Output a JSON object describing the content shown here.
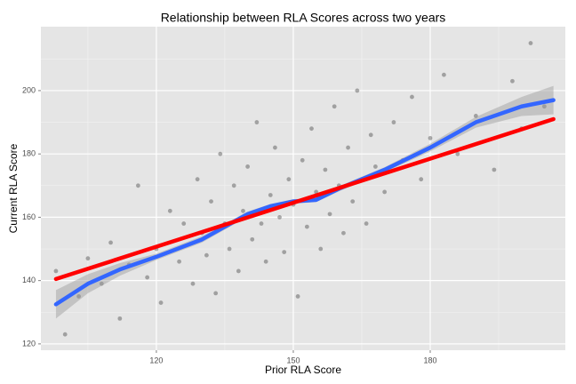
{
  "chart_data": {
    "type": "scatter",
    "title": "Relationship between RLA Scores across two years",
    "x_label": "Prior RLA Score",
    "y_label": "Current RLA Score",
    "xlim": [
      94.7,
      209.6
    ],
    "ylim": [
      118.0,
      220.2
    ],
    "xticks": [
      120,
      150,
      180
    ],
    "yticks": [
      120,
      140,
      160,
      180,
      200
    ],
    "xminor": [
      105,
      135,
      165,
      195
    ],
    "yminor": [
      130,
      150,
      170,
      190,
      210
    ],
    "grid": true,
    "points": {
      "color": "#000000",
      "x": [
        98,
        100,
        103,
        105,
        108,
        110,
        112,
        114,
        116,
        118,
        120,
        121,
        123,
        125,
        126,
        128,
        129,
        130,
        131,
        132,
        133,
        134,
        135,
        136,
        137,
        138,
        139,
        140,
        141,
        142,
        143,
        144,
        145,
        146,
        147,
        148,
        149,
        150,
        151,
        152,
        153,
        154,
        155,
        156,
        157,
        158,
        159,
        160,
        161,
        162,
        163,
        164,
        165,
        166,
        167,
        168,
        170,
        172,
        174,
        176,
        178,
        180,
        183,
        186,
        190,
        194,
        198,
        202,
        205,
        200
      ],
      "y": [
        143,
        123,
        135,
        147,
        139,
        152,
        128,
        145,
        170,
        141,
        150,
        133,
        162,
        146,
        158,
        139,
        172,
        155,
        148,
        165,
        136,
        180,
        158,
        150,
        170,
        143,
        162,
        176,
        153,
        190,
        158,
        146,
        167,
        182,
        160,
        149,
        172,
        164,
        135,
        178,
        157,
        188,
        168,
        150,
        175,
        161,
        195,
        170,
        155,
        182,
        165,
        200,
        172,
        158,
        186,
        176,
        168,
        190,
        178,
        198,
        172,
        185,
        205,
        180,
        192,
        175,
        203,
        215,
        195,
        188
      ]
    },
    "lines": [
      {
        "color": "#3366FF",
        "band_color": "#999999",
        "x": [
          98,
          105,
          112,
          120,
          130,
          140,
          145,
          150,
          155,
          160,
          170,
          180,
          190,
          200,
          207
        ],
        "y": [
          132.5,
          139,
          143.5,
          147.5,
          153,
          161,
          163.5,
          165,
          165.5,
          169,
          175,
          182,
          190,
          195,
          197
        ],
        "lower": [
          128,
          136,
          141.5,
          146.5,
          152,
          160.2,
          162.8,
          164.3,
          164.8,
          168.2,
          174.2,
          180.8,
          188.3,
          192,
          192.5
        ],
        "upper": [
          137,
          142,
          145.5,
          148.5,
          154,
          161.8,
          164.2,
          165.7,
          166.2,
          169.8,
          175.8,
          183.2,
          191.7,
          198,
          201.5
        ]
      },
      {
        "color": "#FF0000",
        "x": [
          98,
          207
        ],
        "y": [
          140.5,
          191
        ]
      }
    ]
  }
}
